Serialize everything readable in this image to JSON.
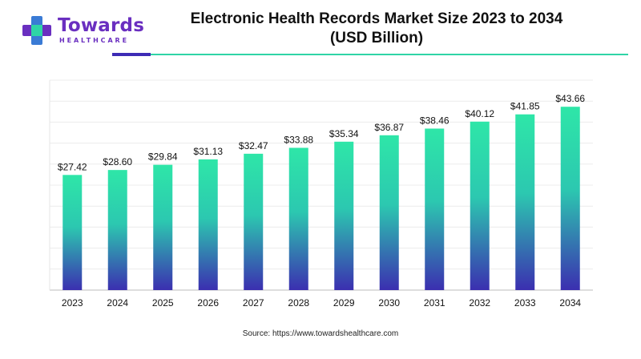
{
  "brand": {
    "name": "Towards",
    "tagline": "HEALTHCARE",
    "colors": {
      "purple": "#6a2fc0",
      "blue": "#3a7bd5",
      "teal": "#2fd4a6"
    }
  },
  "chart_data": {
    "type": "bar",
    "title_line1": "Electronic Health Records Market Size 2023 to 2034",
    "title_line2": "(USD Billion)",
    "categories": [
      "2023",
      "2024",
      "2025",
      "2026",
      "2027",
      "2028",
      "2029",
      "2030",
      "2031",
      "2032",
      "2033",
      "2034"
    ],
    "values": [
      27.42,
      28.6,
      29.84,
      31.13,
      32.47,
      33.88,
      35.34,
      36.87,
      38.46,
      40.12,
      41.85,
      43.66
    ],
    "value_labels": [
      "$27.42",
      "$28.60",
      "$29.84",
      "$31.13",
      "$32.47",
      "$33.88",
      "$35.34",
      "$36.87",
      "$38.46",
      "$40.12",
      "$41.85",
      "$43.66"
    ],
    "ylim": [
      0,
      50
    ],
    "grid": "horizontal",
    "bar_gradient": {
      "top": "#2ee6a8",
      "bottom": "#3b2fb0"
    },
    "xlabel": "",
    "ylabel": ""
  },
  "source": "Source: https://www.towardshealthcare.com"
}
